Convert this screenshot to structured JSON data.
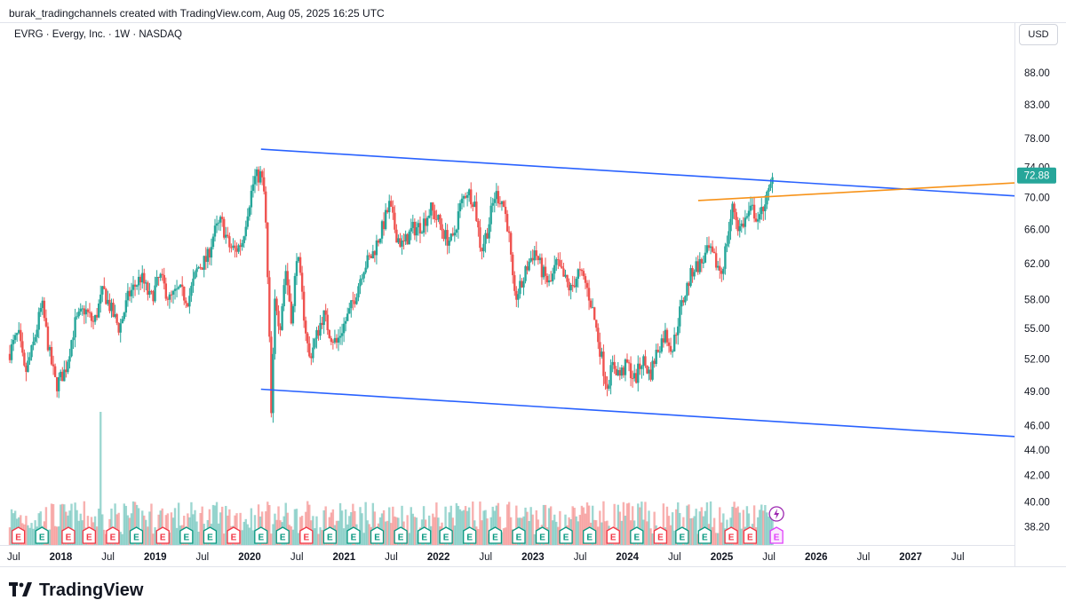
{
  "header": {
    "credit": "burak_tradingchannels created with TradingView.com, Aug 05, 2025 16:25 UTC"
  },
  "symbol": {
    "title": "EVRG · Evergy, Inc. · 1W · NASDAQ"
  },
  "currency": "USD",
  "footer": {
    "brand": "TradingView"
  },
  "colors": {
    "up": "#26a69a",
    "down": "#ef5350",
    "channel": "#2962ff",
    "trendline": "#f7931a",
    "price_tag": "#26a69a",
    "earnings_red": "#f23645",
    "earnings_green": "#089981",
    "future_earnings": "#e040fb"
  },
  "chart_data": {
    "type": "candlestick",
    "ticker": "EVRG",
    "price_scale": {
      "ticks": [
        "88.00",
        "83.00",
        "78.00",
        "74.00",
        "70.00",
        "66.00",
        "62.00",
        "58.00",
        "55.00",
        "52.00",
        "49.00",
        "46.00",
        "44.00",
        "42.00",
        "40.00",
        "38.20"
      ],
      "scale": "log",
      "range": [
        37.8,
        92
      ]
    },
    "time_axis": {
      "labels": [
        {
          "t": 2017.5,
          "text": "Jul",
          "bold": false
        },
        {
          "t": 2018.0,
          "text": "2018",
          "bold": true
        },
        {
          "t": 2018.5,
          "text": "Jul",
          "bold": false
        },
        {
          "t": 2019.0,
          "text": "2019",
          "bold": true
        },
        {
          "t": 2019.5,
          "text": "Jul",
          "bold": false
        },
        {
          "t": 2020.0,
          "text": "2020",
          "bold": true
        },
        {
          "t": 2020.5,
          "text": "Jul",
          "bold": false
        },
        {
          "t": 2021.0,
          "text": "2021",
          "bold": true
        },
        {
          "t": 2021.5,
          "text": "Jul",
          "bold": false
        },
        {
          "t": 2022.0,
          "text": "2022",
          "bold": true
        },
        {
          "t": 2022.5,
          "text": "Jul",
          "bold": false
        },
        {
          "t": 2023.0,
          "text": "2023",
          "bold": true
        },
        {
          "t": 2023.5,
          "text": "Jul",
          "bold": false
        },
        {
          "t": 2024.0,
          "text": "2024",
          "bold": true
        },
        {
          "t": 2024.5,
          "text": "Jul",
          "bold": false
        },
        {
          "t": 2025.0,
          "text": "2025",
          "bold": true
        },
        {
          "t": 2025.5,
          "text": "Jul",
          "bold": false
        },
        {
          "t": 2026.0,
          "text": "2026",
          "bold": true
        },
        {
          "t": 2026.5,
          "text": "Jul",
          "bold": false
        },
        {
          "t": 2027.0,
          "text": "2027",
          "bold": true
        },
        {
          "t": 2027.5,
          "text": "Jul",
          "bold": false
        }
      ],
      "range": [
        2017.45,
        2028.1
      ]
    },
    "last_price": "72.88",
    "price_path": [
      [
        2017.45,
        52.5
      ],
      [
        2017.55,
        54.5
      ],
      [
        2017.62,
        50.5
      ],
      [
        2017.7,
        53.0
      ],
      [
        2017.8,
        57.5
      ],
      [
        2017.88,
        52.5
      ],
      [
        2017.95,
        49.5
      ],
      [
        2018.05,
        51.0
      ],
      [
        2018.15,
        55.5
      ],
      [
        2018.25,
        57.0
      ],
      [
        2018.35,
        55.5
      ],
      [
        2018.45,
        59.0
      ],
      [
        2018.55,
        56.5
      ],
      [
        2018.62,
        55.0
      ],
      [
        2018.72,
        58.5
      ],
      [
        2018.85,
        60.5
      ],
      [
        2018.95,
        58.0
      ],
      [
        2019.05,
        60.5
      ],
      [
        2019.15,
        58.0
      ],
      [
        2019.25,
        59.0
      ],
      [
        2019.35,
        58.0
      ],
      [
        2019.45,
        61.5
      ],
      [
        2019.55,
        62.5
      ],
      [
        2019.62,
        65.5
      ],
      [
        2019.7,
        67.0
      ],
      [
        2019.78,
        64.0
      ],
      [
        2019.85,
        63.5
      ],
      [
        2019.92,
        64.5
      ],
      [
        2019.98,
        68.5
      ],
      [
        2020.05,
        72.5
      ],
      [
        2020.12,
        73.0
      ],
      [
        2020.16,
        70.0
      ],
      [
        2020.2,
        57.0
      ],
      [
        2020.23,
        46.5
      ],
      [
        2020.27,
        58.5
      ],
      [
        2020.32,
        55.0
      ],
      [
        2020.38,
        61.5
      ],
      [
        2020.45,
        55.5
      ],
      [
        2020.5,
        63.5
      ],
      [
        2020.58,
        56.0
      ],
      [
        2020.63,
        52.0
      ],
      [
        2020.7,
        54.0
      ],
      [
        2020.78,
        56.5
      ],
      [
        2020.85,
        54.5
      ],
      [
        2020.92,
        53.5
      ],
      [
        2020.98,
        55.0
      ],
      [
        2021.05,
        56.5
      ],
      [
        2021.12,
        58.5
      ],
      [
        2021.2,
        61.5
      ],
      [
        2021.3,
        63.0
      ],
      [
        2021.4,
        66.0
      ],
      [
        2021.48,
        69.0
      ],
      [
        2021.55,
        65.5
      ],
      [
        2021.62,
        64.0
      ],
      [
        2021.72,
        66.0
      ],
      [
        2021.82,
        66.5
      ],
      [
        2021.92,
        68.5
      ],
      [
        2022.0,
        67.0
      ],
      [
        2022.08,
        65.0
      ],
      [
        2022.15,
        64.5
      ],
      [
        2022.22,
        68.5
      ],
      [
        2022.3,
        71.0
      ],
      [
        2022.38,
        69.5
      ],
      [
        2022.45,
        63.5
      ],
      [
        2022.52,
        66.0
      ],
      [
        2022.6,
        70.5
      ],
      [
        2022.68,
        69.5
      ],
      [
        2022.74,
        66.0
      ],
      [
        2022.8,
        58.0
      ],
      [
        2022.88,
        59.5
      ],
      [
        2022.95,
        62.0
      ],
      [
        2023.02,
        63.5
      ],
      [
        2023.1,
        61.0
      ],
      [
        2023.18,
        59.5
      ],
      [
        2023.25,
        62.0
      ],
      [
        2023.32,
        60.5
      ],
      [
        2023.4,
        59.0
      ],
      [
        2023.48,
        61.0
      ],
      [
        2023.55,
        60.0
      ],
      [
        2023.62,
        57.5
      ],
      [
        2023.7,
        53.5
      ],
      [
        2023.78,
        49.5
      ],
      [
        2023.85,
        51.5
      ],
      [
        2023.92,
        50.5
      ],
      [
        2024.0,
        51.5
      ],
      [
        2024.08,
        50.0
      ],
      [
        2024.16,
        52.0
      ],
      [
        2024.24,
        50.5
      ],
      [
        2024.32,
        53.0
      ],
      [
        2024.4,
        54.5
      ],
      [
        2024.48,
        53.0
      ],
      [
        2024.55,
        56.5
      ],
      [
        2024.62,
        59.0
      ],
      [
        2024.7,
        61.5
      ],
      [
        2024.78,
        62.0
      ],
      [
        2024.86,
        63.5
      ],
      [
        2024.94,
        62.0
      ],
      [
        2025.0,
        61.0
      ],
      [
        2025.06,
        65.0
      ],
      [
        2025.12,
        69.0
      ],
      [
        2025.18,
        66.0
      ],
      [
        2025.24,
        67.0
      ],
      [
        2025.32,
        68.5
      ],
      [
        2025.4,
        67.0
      ],
      [
        2025.45,
        69.5
      ],
      [
        2025.5,
        70.5
      ],
      [
        2025.55,
        72.88
      ]
    ],
    "volume_spikes": [
      [
        2018.42,
        1.0
      ],
      [
        2020.55,
        0.22
      ],
      [
        2023.92,
        0.25
      ],
      [
        2020.2,
        0.3
      ],
      [
        2024.15,
        0.16
      ]
    ],
    "earnings_markers": [
      {
        "t": 2017.55,
        "label": "E",
        "kind": "red"
      },
      {
        "t": 2017.8,
        "label": "E",
        "kind": "green"
      },
      {
        "t": 2018.08,
        "label": "E",
        "kind": "red"
      },
      {
        "t": 2018.3,
        "label": "E",
        "kind": "red"
      },
      {
        "t": 2018.55,
        "label": "E",
        "kind": "red"
      },
      {
        "t": 2018.8,
        "label": "E",
        "kind": "green"
      },
      {
        "t": 2019.08,
        "label": "E",
        "kind": "red"
      },
      {
        "t": 2019.33,
        "label": "E",
        "kind": "green"
      },
      {
        "t": 2019.58,
        "label": "E",
        "kind": "green"
      },
      {
        "t": 2019.83,
        "label": "E",
        "kind": "red"
      },
      {
        "t": 2020.12,
        "label": "E",
        "kind": "green"
      },
      {
        "t": 2020.35,
        "label": "E",
        "kind": "green"
      },
      {
        "t": 2020.6,
        "label": "E",
        "kind": "red"
      },
      {
        "t": 2020.85,
        "label": "E",
        "kind": "green"
      },
      {
        "t": 2021.1,
        "label": "E",
        "kind": "green"
      },
      {
        "t": 2021.35,
        "label": "E",
        "kind": "green"
      },
      {
        "t": 2021.6,
        "label": "E",
        "kind": "green"
      },
      {
        "t": 2021.85,
        "label": "E",
        "kind": "green"
      },
      {
        "t": 2022.08,
        "label": "E",
        "kind": "green"
      },
      {
        "t": 2022.33,
        "label": "E",
        "kind": "green"
      },
      {
        "t": 2022.6,
        "label": "E",
        "kind": "green"
      },
      {
        "t": 2022.85,
        "label": "E",
        "kind": "green"
      },
      {
        "t": 2023.1,
        "label": "E",
        "kind": "green"
      },
      {
        "t": 2023.35,
        "label": "E",
        "kind": "green"
      },
      {
        "t": 2023.6,
        "label": "E",
        "kind": "green"
      },
      {
        "t": 2023.85,
        "label": "E",
        "kind": "red"
      },
      {
        "t": 2024.1,
        "label": "E",
        "kind": "green"
      },
      {
        "t": 2024.35,
        "label": "E",
        "kind": "red"
      },
      {
        "t": 2024.58,
        "label": "E",
        "kind": "green"
      },
      {
        "t": 2024.82,
        "label": "E",
        "kind": "green"
      },
      {
        "t": 2025.1,
        "label": "E",
        "kind": "red"
      },
      {
        "t": 2025.3,
        "label": "E",
        "kind": "red"
      },
      {
        "t": 2025.58,
        "label": "E",
        "kind": "future"
      }
    ],
    "drawings": [
      {
        "name": "channel-upper-line",
        "kind": "channel",
        "from": [
          2020.12,
          76.5
        ],
        "to": [
          2028.1,
          70.2
        ]
      },
      {
        "name": "channel-lower-line",
        "kind": "channel",
        "from": [
          2020.12,
          49.2
        ],
        "to": [
          2028.1,
          45.1
        ]
      },
      {
        "name": "orange-trendline",
        "kind": "trendline",
        "from": [
          2024.75,
          69.6
        ],
        "to": [
          2028.1,
          71.9
        ]
      }
    ]
  }
}
